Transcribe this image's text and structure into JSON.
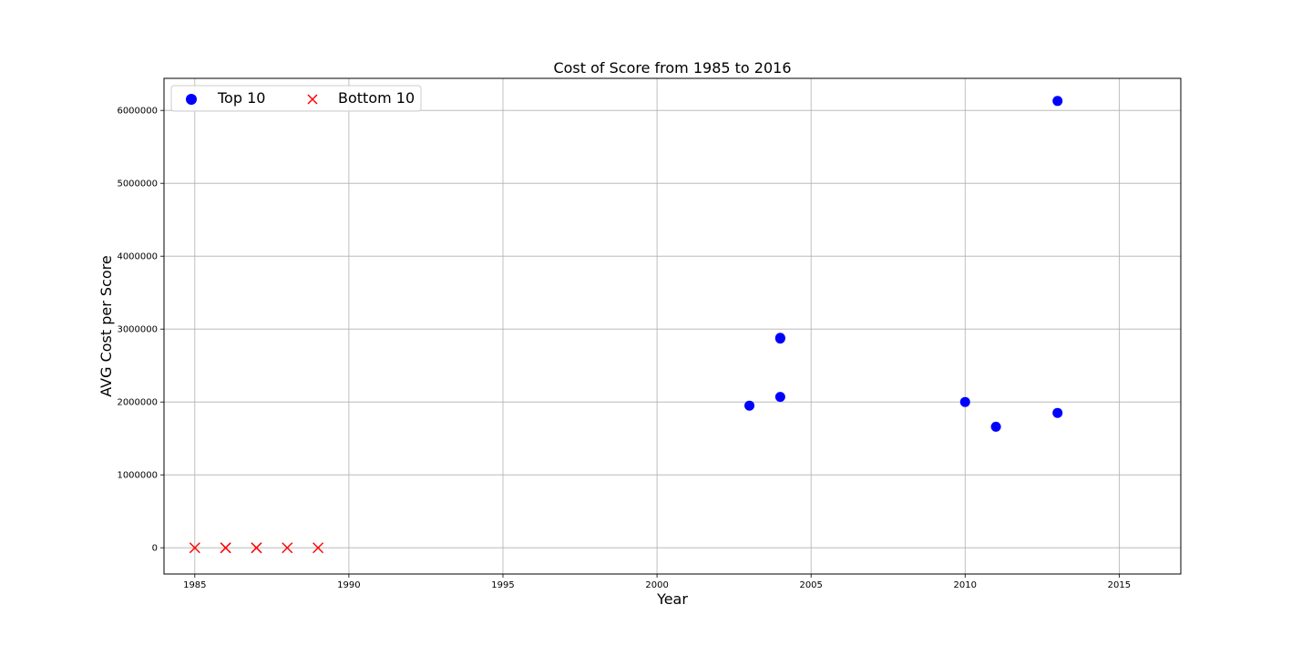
{
  "chart_data": {
    "type": "scatter",
    "title": "Cost of Score from 1985 to 2016",
    "xlabel": "Year",
    "ylabel": "AVG Cost per Score",
    "xlim": [
      1984,
      2017
    ],
    "ylim": [
      -360000,
      6440000
    ],
    "x_ticks": [
      1985,
      1990,
      1995,
      2000,
      2005,
      2010,
      2015
    ],
    "y_ticks": [
      0,
      1000000,
      2000000,
      3000000,
      4000000,
      5000000,
      6000000
    ],
    "grid": true,
    "legend_position": "top-left",
    "legend_columns": 2,
    "series": [
      {
        "name": "Top 10",
        "marker": "circle",
        "color": "#0000ff",
        "points": [
          {
            "x": 2003,
            "y": 1950000
          },
          {
            "x": 2004,
            "y": 2870000
          },
          {
            "x": 2004,
            "y": 2880000
          },
          {
            "x": 2004,
            "y": 2070000
          },
          {
            "x": 2010,
            "y": 2000000
          },
          {
            "x": 2011,
            "y": 1660000
          },
          {
            "x": 2013,
            "y": 6130000
          },
          {
            "x": 2013,
            "y": 1850000
          }
        ]
      },
      {
        "name": "Bottom 10",
        "marker": "x",
        "color": "#ff0000",
        "points": [
          {
            "x": 1985,
            "y": 0
          },
          {
            "x": 1986,
            "y": 0
          },
          {
            "x": 1986,
            "y": 0
          },
          {
            "x": 1987,
            "y": 0
          },
          {
            "x": 1987,
            "y": 0
          },
          {
            "x": 1988,
            "y": 0
          },
          {
            "x": 1989,
            "y": 0
          }
        ]
      }
    ]
  }
}
